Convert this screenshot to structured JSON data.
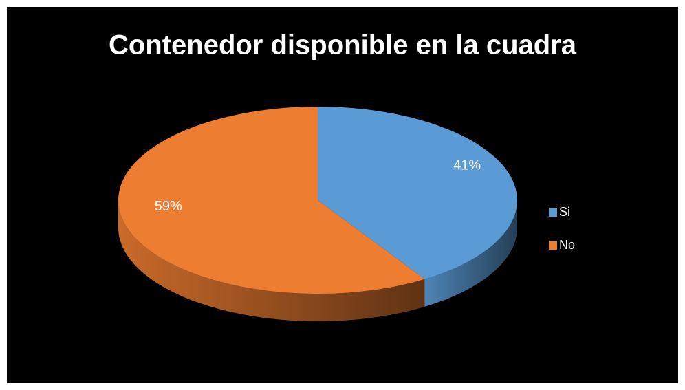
{
  "chart_data": {
    "type": "pie",
    "title": "Contenedor disponible en la cuadra",
    "categories": [
      "Si",
      "No"
    ],
    "values": [
      41,
      59
    ],
    "value_labels": [
      "41%",
      "59%"
    ],
    "colors": [
      "#5b9bd5",
      "#ed7d31"
    ],
    "legend": "right"
  }
}
